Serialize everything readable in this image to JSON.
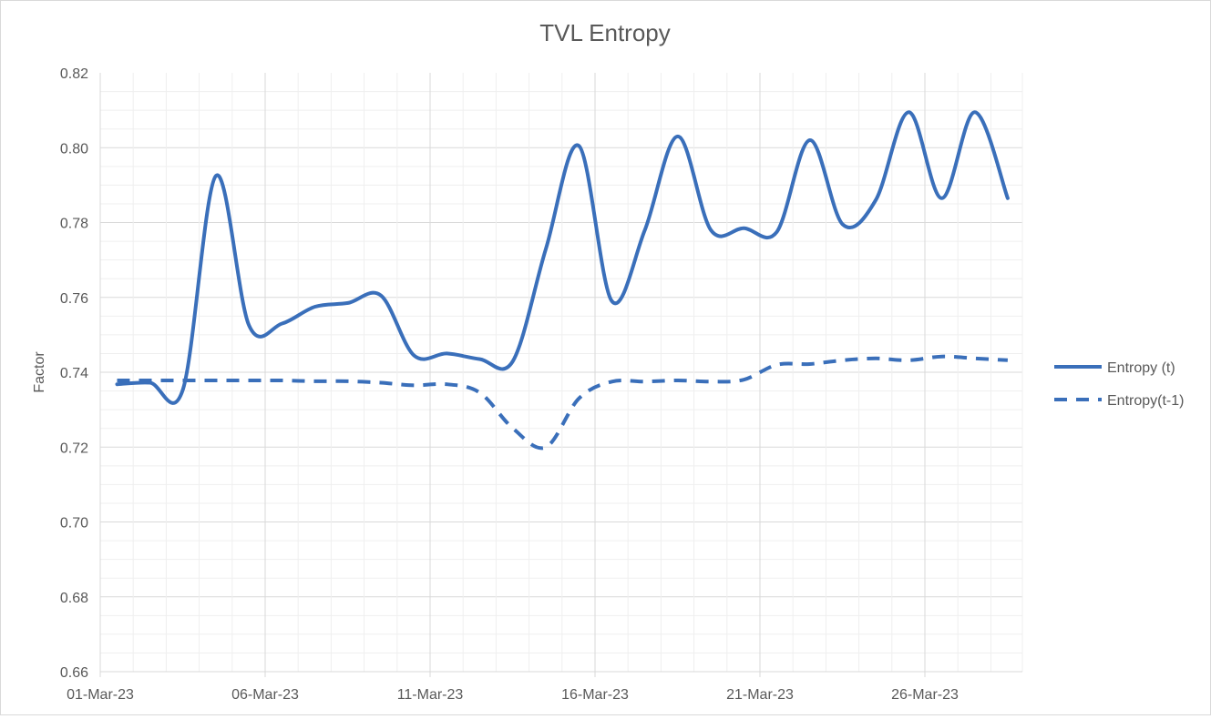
{
  "chart_data": {
    "type": "line",
    "title": "TVL Entropy",
    "xlabel": "",
    "ylabel": "Factor",
    "x": [
      "01-Mar-23",
      "02-Mar-23",
      "03-Mar-23",
      "04-Mar-23",
      "05-Mar-23",
      "06-Mar-23",
      "07-Mar-23",
      "08-Mar-23",
      "09-Mar-23",
      "10-Mar-23",
      "11-Mar-23",
      "12-Mar-23",
      "13-Mar-23",
      "14-Mar-23",
      "15-Mar-23",
      "16-Mar-23",
      "17-Mar-23",
      "18-Mar-23",
      "19-Mar-23",
      "20-Mar-23",
      "21-Mar-23",
      "22-Mar-23",
      "23-Mar-23",
      "24-Mar-23",
      "25-Mar-23",
      "26-Mar-23",
      "27-Mar-23",
      "28-Mar-23"
    ],
    "x_tick_labels": [
      "01-Mar-23",
      "06-Mar-23",
      "11-Mar-23",
      "16-Mar-23",
      "21-Mar-23",
      "26-Mar-23"
    ],
    "y_tick_labels": [
      "0.66",
      "0.68",
      "0.70",
      "0.72",
      "0.74",
      "0.76",
      "0.78",
      "0.80",
      "0.82"
    ],
    "ylim": [
      0.66,
      0.82
    ],
    "grid": true,
    "legend_position": "right",
    "series": [
      {
        "name": "Entropy (t)",
        "style": "solid",
        "color": "#3a6fba",
        "values": [
          0.7368,
          0.7372,
          0.7355,
          0.7925,
          0.7525,
          0.753,
          0.7575,
          0.7585,
          0.7605,
          0.7445,
          0.745,
          0.7435,
          0.743,
          0.773,
          0.8005,
          0.759,
          0.778,
          0.803,
          0.778,
          0.7785,
          0.7775,
          0.802,
          0.7795,
          0.786,
          0.8095,
          0.7865,
          0.8095,
          0.7865
        ]
      },
      {
        "name": "Entropy(t-1)",
        "style": "dashed",
        "color": "#3a6fba",
        "values": [
          0.7378,
          0.7378,
          0.7378,
          0.7378,
          0.7378,
          0.7378,
          0.7376,
          0.7376,
          0.7372,
          0.7365,
          0.7368,
          0.7345,
          0.725,
          0.72,
          0.733,
          0.7375,
          0.7375,
          0.7378,
          0.7375,
          0.738,
          0.742,
          0.7422,
          0.7432,
          0.7437,
          0.7432,
          0.7442,
          0.7437,
          0.7432
        ]
      }
    ]
  }
}
